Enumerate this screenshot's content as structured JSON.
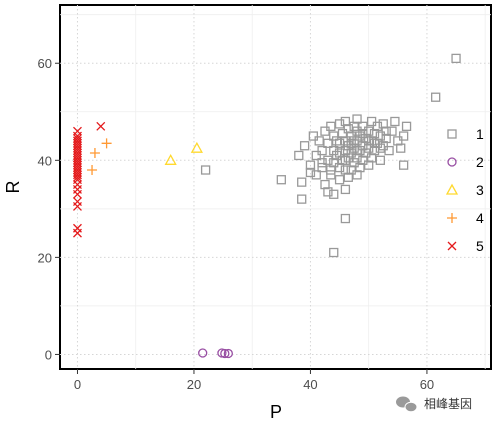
{
  "chart_data": {
    "type": "scatter",
    "xlabel": "P",
    "ylabel": "R",
    "xlim": [
      -3,
      71
    ],
    "ylim": [
      -3,
      72
    ],
    "x_ticks": [
      0,
      20,
      40,
      60
    ],
    "y_ticks": [
      0,
      20,
      40,
      60
    ],
    "grid": true,
    "legend_position": "right",
    "series": [
      {
        "name": "1",
        "marker": "square",
        "color": "#999999",
        "points": [
          [
            65,
            61
          ],
          [
            61.5,
            53
          ],
          [
            22,
            38
          ],
          [
            35,
            36
          ],
          [
            38.5,
            35.5
          ],
          [
            38.5,
            32
          ],
          [
            44,
            21
          ],
          [
            46,
            28
          ],
          [
            38,
            41
          ],
          [
            39,
            43
          ],
          [
            40,
            39
          ],
          [
            40.5,
            45
          ],
          [
            41,
            37
          ],
          [
            41,
            41
          ],
          [
            41.5,
            44
          ],
          [
            42,
            38.5
          ],
          [
            42,
            42
          ],
          [
            42.5,
            35
          ],
          [
            42.5,
            46
          ],
          [
            43,
            33.5
          ],
          [
            43,
            40
          ],
          [
            43,
            43.5
          ],
          [
            43.5,
            37
          ],
          [
            43.5,
            47
          ],
          [
            44,
            33
          ],
          [
            44,
            39.5
          ],
          [
            44,
            42
          ],
          [
            44,
            45
          ],
          [
            44.5,
            41
          ],
          [
            45,
            36
          ],
          [
            45,
            38.5
          ],
          [
            45,
            43.5
          ],
          [
            45,
            47.5
          ],
          [
            45.5,
            40
          ],
          [
            45.5,
            45.5
          ],
          [
            46,
            34
          ],
          [
            46,
            38
          ],
          [
            46,
            42
          ],
          [
            46,
            44
          ],
          [
            46,
            48
          ],
          [
            46.5,
            36.5
          ],
          [
            46.5,
            40.5
          ],
          [
            46.5,
            46.5
          ],
          [
            47,
            38
          ],
          [
            47,
            41.5
          ],
          [
            47,
            43.5
          ],
          [
            47,
            45
          ],
          [
            47.5,
            39.5
          ],
          [
            47.5,
            42.5
          ],
          [
            47.5,
            47
          ],
          [
            48,
            37
          ],
          [
            48,
            40.5
          ],
          [
            48,
            44
          ],
          [
            48,
            46
          ],
          [
            48,
            48.5
          ],
          [
            48.5,
            38.5
          ],
          [
            48.5,
            42
          ],
          [
            48.5,
            45
          ],
          [
            49,
            40
          ],
          [
            49,
            43
          ],
          [
            49,
            47
          ],
          [
            49.5,
            41.5
          ],
          [
            49.5,
            44.5
          ],
          [
            50,
            39
          ],
          [
            50,
            42.5
          ],
          [
            50,
            46
          ],
          [
            50.5,
            40.5
          ],
          [
            50.5,
            44
          ],
          [
            50.5,
            48
          ],
          [
            51,
            42
          ],
          [
            51,
            45.5
          ],
          [
            51.5,
            43.5
          ],
          [
            51.5,
            47
          ],
          [
            52,
            40
          ],
          [
            52,
            45
          ],
          [
            52.5,
            43
          ],
          [
            52.5,
            47.5
          ],
          [
            53,
            44.5
          ],
          [
            53.5,
            42
          ],
          [
            54,
            46
          ],
          [
            54.5,
            48
          ],
          [
            55,
            44
          ],
          [
            55.5,
            42.5
          ],
          [
            56,
            45
          ],
          [
            56,
            39
          ],
          [
            56.5,
            47
          ],
          [
            43.5,
            38
          ],
          [
            45,
            41.5
          ],
          [
            46.5,
            43
          ],
          [
            47.5,
            44
          ],
          [
            49,
            45.5
          ],
          [
            50,
            44
          ],
          [
            51,
            43.5
          ],
          [
            48,
            42
          ],
          [
            46,
            40
          ],
          [
            44.5,
            44
          ],
          [
            52,
            42.5
          ],
          [
            53,
            46
          ],
          [
            40,
            37.5
          ],
          [
            42,
            39.5
          ]
        ]
      },
      {
        "name": "2",
        "marker": "circle",
        "color": "#984ea3",
        "points": [
          [
            21.5,
            0.3
          ],
          [
            24.8,
            0.3
          ],
          [
            25.3,
            0.2
          ],
          [
            25.9,
            0.2
          ]
        ]
      },
      {
        "name": "3",
        "marker": "triangle",
        "color": "#ffd92f",
        "points": [
          [
            16,
            40
          ],
          [
            20.5,
            42.5
          ]
        ]
      },
      {
        "name": "4",
        "marker": "plus",
        "color": "#ff9933",
        "points": [
          [
            2.5,
            38
          ],
          [
            3,
            41.5
          ],
          [
            5,
            43.5
          ]
        ]
      },
      {
        "name": "5",
        "marker": "cross",
        "color": "#e41a1c",
        "points": [
          [
            4,
            47
          ],
          [
            0,
            46
          ],
          [
            0,
            45
          ],
          [
            0,
            44.5
          ],
          [
            0,
            44
          ],
          [
            0,
            43.5
          ],
          [
            0,
            43
          ],
          [
            0,
            42.5
          ],
          [
            0,
            42
          ],
          [
            0,
            41.5
          ],
          [
            0,
            41
          ],
          [
            0,
            40.5
          ],
          [
            0,
            40
          ],
          [
            0,
            39.5
          ],
          [
            0,
            39
          ],
          [
            0,
            38.5
          ],
          [
            0,
            38
          ],
          [
            0,
            37.5
          ],
          [
            0,
            37
          ],
          [
            0,
            36.5
          ],
          [
            0,
            36
          ],
          [
            0,
            35
          ],
          [
            0,
            34
          ],
          [
            0,
            33
          ],
          [
            0,
            31.5
          ],
          [
            0,
            30.5
          ],
          [
            0,
            26
          ],
          [
            0,
            25
          ]
        ]
      }
    ]
  },
  "watermark": {
    "icon": "wechat-icon",
    "text": "相峰基因"
  }
}
